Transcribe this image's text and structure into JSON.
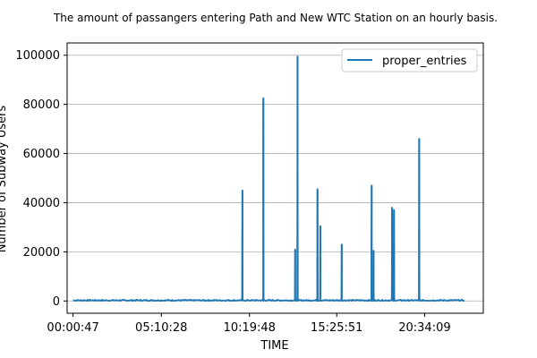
{
  "chart_data": {
    "type": "line",
    "title": "The amount of passangers entering Path and New WTC Station on an hourly basis.",
    "xlabel": "TIME",
    "ylabel": "Number of Subway Users",
    "x_tick_labels": [
      "00:00:47",
      "05:10:28",
      "10:19:48",
      "15:25:51",
      "20:34:09"
    ],
    "x_tick_seconds": [
      47,
      18628,
      37188,
      55551,
      74049
    ],
    "xlim_seconds": [
      -1200,
      86400
    ],
    "ylim": [
      -5000,
      105000
    ],
    "y_ticks": [
      0,
      20000,
      40000,
      60000,
      80000,
      100000
    ],
    "grid": "horizontal",
    "legend_position": "top-right",
    "series": [
      {
        "name": "proper_entries",
        "color": "#1f77b4",
        "baseline": {
          "x_range_seconds": [
            47,
            82500
          ],
          "noise": 500
        },
        "spikes": [
          {
            "t_seconds": 35700,
            "value": 45000
          },
          {
            "t_seconds": 40100,
            "value": 82500
          },
          {
            "t_seconds": 46800,
            "value": 21000
          },
          {
            "t_seconds": 47300,
            "value": 99500
          },
          {
            "t_seconds": 51500,
            "value": 45500
          },
          {
            "t_seconds": 52100,
            "value": 30500
          },
          {
            "t_seconds": 56600,
            "value": 23000
          },
          {
            "t_seconds": 62900,
            "value": 47000
          },
          {
            "t_seconds": 63300,
            "value": 20500
          },
          {
            "t_seconds": 67200,
            "value": 38000
          },
          {
            "t_seconds": 67600,
            "value": 37000
          },
          {
            "t_seconds": 72900,
            "value": 66000
          }
        ]
      }
    ]
  }
}
